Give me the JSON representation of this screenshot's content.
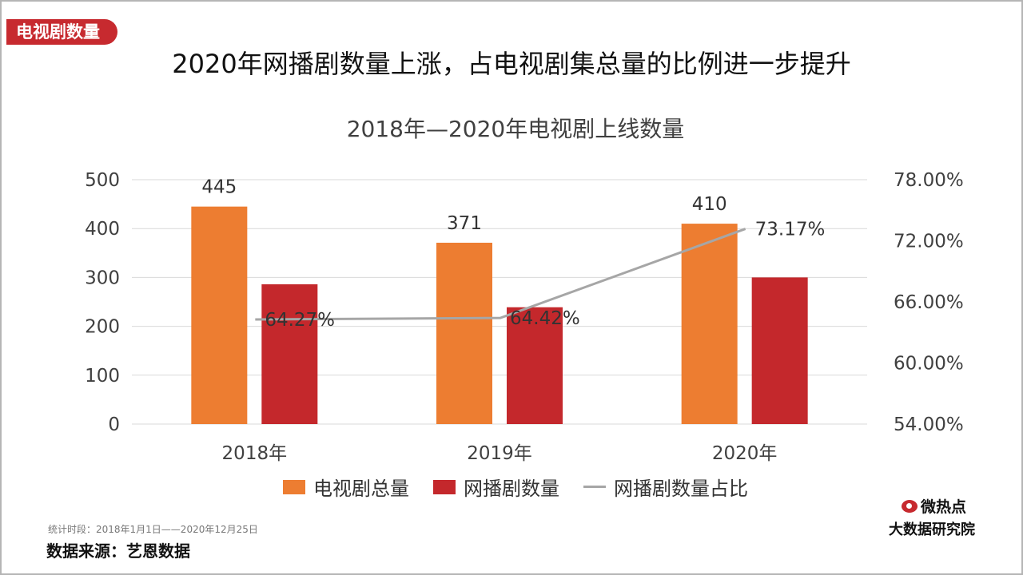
{
  "tag": "电视剧数量",
  "headline": "2020年网播剧数量上涨，占电视剧集总量的比例进一步提升",
  "colors": {
    "total": "#ed7d31",
    "web": "#c4282c",
    "ratio": "#a6a6a6",
    "tag": "#c72a2f"
  },
  "chart_data": {
    "type": "bar",
    "title": "2018年—2020年电视剧上线数量",
    "categories": [
      "2018年",
      "2019年",
      "2020年"
    ],
    "series": [
      {
        "name": "电视剧总量",
        "type": "bar",
        "axis": "left",
        "values": [
          445,
          371,
          410
        ],
        "labels": [
          "445",
          "371",
          "410"
        ]
      },
      {
        "name": "网播剧数量",
        "type": "bar",
        "axis": "left",
        "values": [
          286,
          239,
          300
        ]
      },
      {
        "name": "网播剧数量占比",
        "type": "line",
        "axis": "right",
        "values": [
          64.27,
          64.42,
          73.17
        ],
        "labels": [
          "64.27%",
          "64.42%",
          "73.17%"
        ]
      }
    ],
    "ylim": [
      0,
      500
    ],
    "yticks": [
      "0",
      "100",
      "200",
      "300",
      "400",
      "500"
    ],
    "y2lim": [
      54,
      78
    ],
    "y2ticks": [
      "54.00%",
      "60.00%",
      "66.00%",
      "72.00%",
      "78.00%"
    ],
    "grid": true,
    "legend": "bottom"
  },
  "footer": {
    "period": "统计时段：2018年1月1日——2020年12月25日",
    "source": "数据来源：艺恩数据"
  },
  "logo": {
    "line1": "微热点",
    "line2": "大数据研究院"
  }
}
